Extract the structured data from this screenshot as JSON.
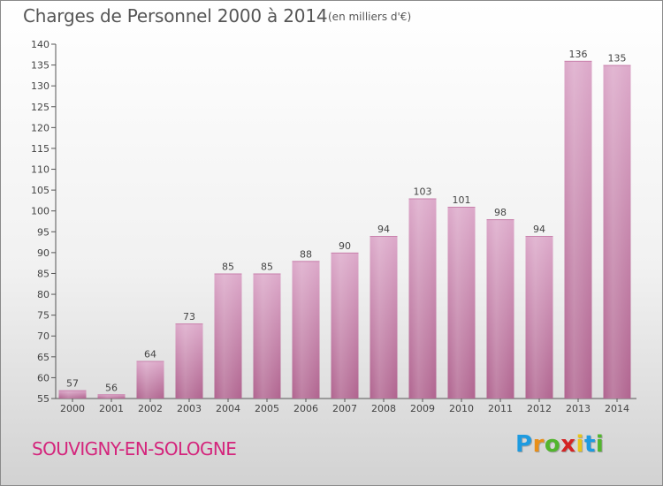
{
  "header": {
    "title": "Charges de Personnel 2000 à 2014",
    "subtitle": "(en milliers d'€)"
  },
  "footer": {
    "commune": "SOUVIGNY-EN-SOLOGNE",
    "logo_letters": [
      "P",
      "r",
      "o",
      "x",
      "i",
      "t",
      "i"
    ],
    "logo_colors": [
      "#1e9be0",
      "#e88f19",
      "#52b52e",
      "#d42424",
      "#e8c51a",
      "#1e9be0",
      "#52b52e"
    ]
  },
  "colors": {
    "bar_top": "#dca8c9",
    "bar_bottom": "#b0648f",
    "bar_highlight": "#ecc4dc"
  },
  "chart_data": {
    "type": "bar",
    "title": "Charges de Personnel 2000 à 2014",
    "subtitle": "(en milliers d'€)",
    "categories": [
      "2000",
      "2001",
      "2002",
      "2003",
      "2004",
      "2005",
      "2006",
      "2007",
      "2008",
      "2009",
      "2010",
      "2011",
      "2012",
      "2013",
      "2014"
    ],
    "values": [
      57,
      56,
      64,
      73,
      85,
      85,
      88,
      90,
      94,
      103,
      101,
      98,
      94,
      136,
      135
    ],
    "ylim": [
      55,
      140
    ],
    "yticks": [
      55,
      60,
      65,
      70,
      75,
      80,
      85,
      90,
      95,
      100,
      105,
      110,
      115,
      120,
      125,
      130,
      135,
      140
    ],
    "grid": false,
    "xlabel": "",
    "ylabel": ""
  }
}
